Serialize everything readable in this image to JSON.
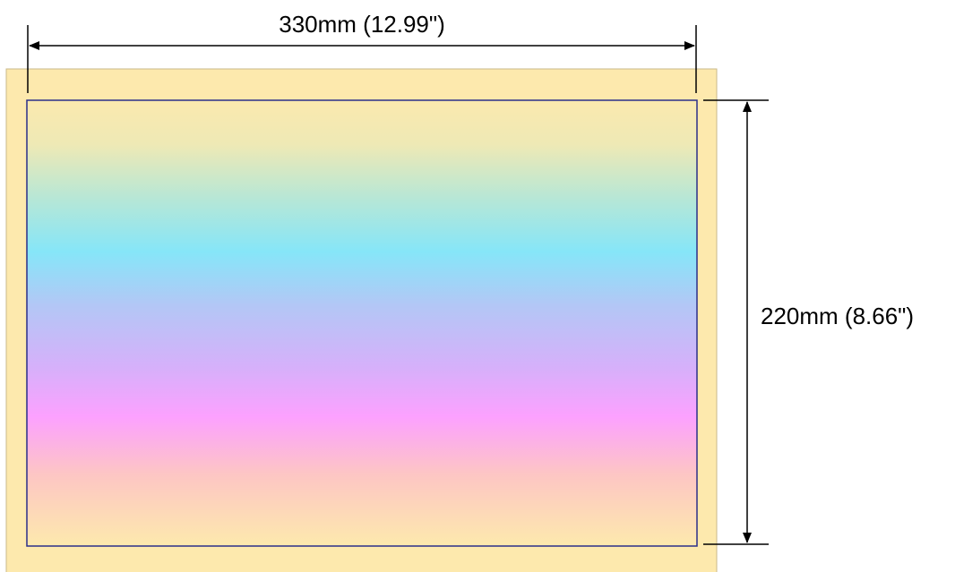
{
  "dimensions": {
    "width_label": "330mm (12.99\")",
    "height_label": "220mm (8.66\")"
  },
  "colors": {
    "sheet_fill": "#fde9ad",
    "print_area_border": "#2b2f8a",
    "dimension_line": "#000000",
    "gradient_stops": [
      "#fbe9ae",
      "#86e6f8",
      "#c7b3f7",
      "#fca1ff",
      "#fde9ad"
    ]
  }
}
